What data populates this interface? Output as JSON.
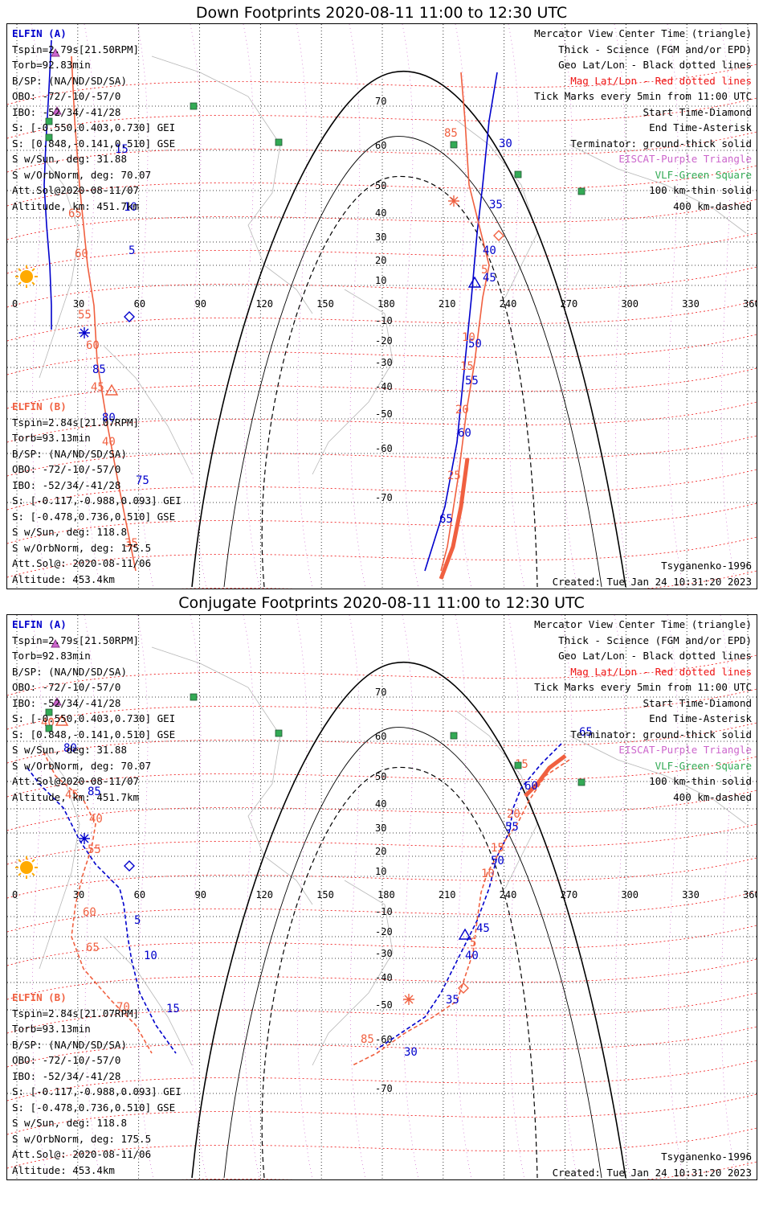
{
  "panels": [
    {
      "title": "Down Footprints 2020-08-11 11:00 to 12:30 UTC",
      "elfin_a": {
        "name": "ELFIN (A)",
        "lines": [
          "Tspin=2.79s[21.50RPM]",
          "Torb=92.83min",
          "B/SP: (NA/ND/SD/SA)",
          "OBO: -72/-10/-57/0",
          "IBO: -52/34/-41/28",
          "S: [-0.550,0.403,0.730] GEI",
          "S: [0.848,-0.141,0.510] GSE",
          "S w/Sun, deg: 31.88",
          "S w/OrbNorm, deg: 70.07",
          "Att.Sol@2020-08-11/07",
          "Altitude, km: 451.7km"
        ]
      },
      "elfin_b": {
        "name": "ELFIN (B)",
        "lines": [
          "Tspin=2.84s[21.07RPM]",
          "Torb=93.13min",
          "B/SP: (NA/ND/SD/SA)",
          "OBO: -72/-10/-57/0",
          "IBO: -52/34/-41/28",
          "S: [-0.117,-0.988,0.093] GEI",
          "S: [-0.478,0.736,0.510] GSE",
          "S w/Sun, deg: 118.8",
          "S w/OrbNorm, deg: 175.5",
          "Att.Sol@: 2020-08-11/06",
          "Altitude: 453.4km"
        ]
      },
      "footer_left": "",
      "model": "Tsyganenko-1996",
      "created": "Created: Tue Jan 24 10:31:20 2023",
      "traj_a": [
        [
          55,
          20
        ],
        [
          52,
          80
        ],
        [
          48,
          150
        ],
        [
          46,
          200
        ],
        [
          49,
          250
        ],
        [
          53,
          300
        ],
        [
          55,
          350
        ],
        [
          55,
          380
        ]
      ],
      "traj_a2": [
        [
          610,
          60
        ],
        [
          600,
          120
        ],
        [
          592,
          200
        ],
        [
          585,
          260
        ],
        [
          578,
          340
        ],
        [
          570,
          420
        ],
        [
          560,
          520
        ],
        [
          545,
          600
        ],
        [
          520,
          680
        ]
      ],
      "traj_b": [
        [
          80,
          40
        ],
        [
          84,
          120
        ],
        [
          90,
          200
        ],
        [
          100,
          300
        ],
        [
          108,
          350
        ],
        [
          112,
          420
        ],
        [
          125,
          500
        ],
        [
          140,
          580
        ],
        [
          160,
          680
        ]
      ],
      "traj_b2": [
        [
          565,
          60
        ],
        [
          570,
          120
        ],
        [
          575,
          200
        ],
        [
          590,
          260
        ],
        [
          600,
          300
        ],
        [
          592,
          340
        ],
        [
          582,
          420
        ],
        [
          572,
          480
        ],
        [
          562,
          560
        ],
        [
          548,
          650
        ],
        [
          540,
          680
        ]
      ],
      "thick_b": [
        [
          573,
          540
        ],
        [
          565,
          600
        ],
        [
          555,
          650
        ],
        [
          540,
          690
        ]
      ],
      "labels_a": [
        [
          "15",
          134,
          160
        ],
        [
          "10",
          145,
          232
        ],
        [
          "5",
          151,
          286
        ],
        [
          "30",
          612,
          153
        ],
        [
          "35",
          600,
          229
        ],
        [
          "40",
          592,
          286
        ],
        [
          "45",
          592,
          320
        ],
        [
          "50",
          574,
          402
        ],
        [
          "55",
          570,
          448
        ],
        [
          "60",
          561,
          513
        ],
        [
          "65",
          538,
          620
        ]
      ],
      "labels_b": [
        [
          "85",
          544,
          140
        ],
        [
          "65",
          76,
          240
        ],
        [
          "60",
          84,
          290
        ],
        [
          "55",
          88,
          366
        ],
        [
          "60",
          98,
          404
        ],
        [
          "45",
          104,
          456
        ],
        [
          "40",
          118,
          524
        ],
        [
          "35",
          146,
          650
        ],
        [
          "5",
          590,
          310
        ],
        [
          "10",
          566,
          394
        ],
        [
          "15",
          564,
          430
        ],
        [
          "20",
          558,
          484
        ],
        [
          "25",
          548,
          566
        ]
      ],
      "labels_b_blue": [
        [
          "85",
          106,
          434
        ],
        [
          "80",
          118,
          494
        ],
        [
          "75",
          160,
          572
        ]
      ],
      "sym_start_a": [
        152,
        364
      ],
      "sym_end_a": [
        96,
        384
      ],
      "sym_mid_a": [
        582,
        322
      ],
      "sym_start_b": [
        612,
        263
      ],
      "sym_end_b": [
        556,
        220
      ],
      "sym_mid_b": [
        130,
        456
      ]
    },
    {
      "title": "Conjugate Footprints 2020-08-11 11:00 to 12:30 UTC",
      "elfin_a": {
        "name": "ELFIN (A)",
        "lines": [
          "Tspin=2.79s[21.50RPM]",
          "Torb=92.83min",
          "B/SP: (NA/ND/SD/SA)",
          "OBO: -72/-10/-57/0",
          "IBO: -52/34/-41/28",
          "S: [-0.550,0.403,0.730] GEI",
          "S: [0.848,-0.141,0.510] GSE",
          "S w/Sun, deg: 31.88",
          "S w/OrbNorm, deg: 70.07",
          "Att.Sol@2020-08-11/07",
          "Altitude, km: 451.7km"
        ]
      },
      "elfin_b": {
        "name": "ELFIN (B)",
        "lines": [
          "Tspin=2.84s[21.07RPM]",
          "Torb=93.13min",
          "B/SP: (NA/ND/SD/SA)",
          "OBO: -72/-10/-57/0",
          "IBO: -52/34/-41/28",
          "S: [-0.117,-0.988,0.093] GEI",
          "S: [-0.478,0.736,0.510] GSE",
          "S w/Sun, deg: 118.8",
          "S w/OrbNorm, deg: 175.5",
          "Att.Sol@: 2020-08-11/06",
          "Altitude: 453.4km"
        ]
      },
      "model": "Tsyganenko-1996",
      "created": "Created: Tue Jan 24 10:31:20 2023",
      "traj_a": [
        [
          25,
          190
        ],
        [
          40,
          210
        ],
        [
          70,
          240
        ],
        [
          90,
          280
        ],
        [
          110,
          310
        ],
        [
          140,
          340
        ],
        [
          145,
          360
        ],
        [
          150,
          400
        ],
        [
          155,
          430
        ],
        [
          165,
          470
        ],
        [
          185,
          510
        ],
        [
          210,
          545
        ]
      ],
      "traj_a2": [
        [
          690,
          160
        ],
        [
          665,
          185
        ],
        [
          640,
          215
        ],
        [
          630,
          240
        ],
        [
          625,
          270
        ],
        [
          610,
          300
        ],
        [
          600,
          340
        ],
        [
          585,
          380
        ],
        [
          570,
          410
        ],
        [
          555,
          440
        ],
        [
          540,
          470
        ],
        [
          520,
          500
        ],
        [
          490,
          520
        ],
        [
          460,
          540
        ]
      ],
      "traj_b": [
        [
          45,
          170
        ],
        [
          60,
          200
        ],
        [
          95,
          230
        ],
        [
          110,
          260
        ],
        [
          105,
          290
        ],
        [
          95,
          320
        ],
        [
          85,
          360
        ],
        [
          80,
          400
        ],
        [
          95,
          440
        ],
        [
          130,
          480
        ],
        [
          160,
          510
        ],
        [
          180,
          545
        ]
      ],
      "traj_b2": [
        [
          700,
          180
        ],
        [
          670,
          200
        ],
        [
          650,
          230
        ],
        [
          635,
          260
        ],
        [
          620,
          280
        ],
        [
          610,
          300
        ],
        [
          598,
          320
        ],
        [
          590,
          345
        ],
        [
          585,
          380
        ],
        [
          580,
          420
        ],
        [
          570,
          450
        ],
        [
          560,
          480
        ],
        [
          530,
          500
        ],
        [
          495,
          520
        ],
        [
          460,
          545
        ],
        [
          430,
          560
        ]
      ],
      "thick_b": [
        [
          695,
          175
        ],
        [
          675,
          190
        ],
        [
          660,
          210
        ],
        [
          645,
          225
        ]
      ],
      "labels_a": [
        [
          "65",
          712,
          150
        ],
        [
          "60",
          644,
          217
        ],
        [
          "55",
          620,
          268
        ],
        [
          "50",
          602,
          310
        ],
        [
          "45",
          584,
          394
        ],
        [
          "40",
          570,
          428
        ],
        [
          "35",
          546,
          483
        ],
        [
          "30",
          494,
          548
        ],
        [
          "80",
          70,
          170
        ],
        [
          "85",
          100,
          224
        ],
        [
          "5",
          158,
          384
        ],
        [
          "10",
          170,
          428
        ],
        [
          "15",
          198,
          494
        ]
      ],
      "labels_b": [
        [
          "40",
          42,
          138
        ],
        [
          "45",
          72,
          228
        ],
        [
          "40",
          102,
          258
        ],
        [
          "55",
          100,
          296
        ],
        [
          "60",
          94,
          374
        ],
        [
          "65",
          98,
          418
        ],
        [
          "70",
          136,
          492
        ],
        [
          "20",
          622,
          252
        ],
        [
          "15",
          602,
          294
        ],
        [
          "10",
          590,
          326
        ],
        [
          "5",
          576,
          412
        ],
        [
          "85",
          440,
          532
        ],
        [
          "15",
          632,
          190
        ]
      ],
      "labels_b_blue": [],
      "sym_start_a": [
        152,
        312
      ],
      "sym_end_a": [
        96,
        278
      ],
      "sym_mid_a": [
        570,
        398
      ],
      "sym_start_b": [
        568,
        464
      ],
      "sym_end_b": [
        500,
        478
      ],
      "sym_mid_b": [
        68,
        132
      ]
    }
  ],
  "right_legend": [
    {
      "text": "Mercator View Center Time (triangle)",
      "tone": "black"
    },
    {
      "text": "Thick - Science (FGM and/or EPD)",
      "tone": "black"
    },
    {
      "text": "Geo Lat/Lon - Black dotted lines",
      "tone": "black"
    },
    {
      "text": "Mag Lat/Lon - Red dotted lines",
      "tone": "red"
    },
    {
      "text": "Tick Marks every 5min from 11:00 UTC",
      "tone": "black"
    },
    {
      "text": "Start Time-Diamond",
      "tone": "black"
    },
    {
      "text": "End Time-Asterisk",
      "tone": "black"
    },
    {
      "text": "Terminator: ground-thick solid",
      "tone": "black"
    },
    {
      "text": "EISCAT-Purple Triangle",
      "tone": "purple"
    },
    {
      "text": "VLF-Green Square",
      "tone": "green"
    },
    {
      "text": "100 km-thin solid",
      "tone": "black"
    },
    {
      "text": "400 km-dashed",
      "tone": "black"
    }
  ],
  "lon_ticks": [
    "0",
    "30",
    "60",
    "90",
    "120",
    "150",
    "180",
    "210",
    "240",
    "270",
    "300",
    "330",
    "360"
  ],
  "lat_ticks_top": [
    "70",
    "60",
    "50",
    "40",
    "30",
    "20",
    "10",
    "-10",
    "-20",
    "-30",
    "-40",
    "-50",
    "-60",
    "-70"
  ],
  "colors": {
    "elfin_a": "#0000cc",
    "elfin_b": "#f06040",
    "mag_grid": "#ee1111",
    "geo_grid": "#000000",
    "eiscat": "#cc66cc",
    "vlf": "#33aa55",
    "sun": "#ffaa00"
  }
}
